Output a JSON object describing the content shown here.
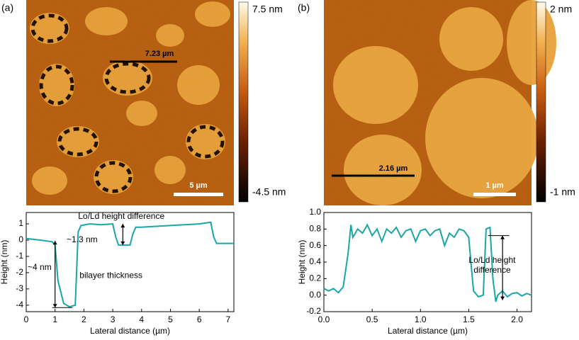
{
  "images": [
    {
      "label": "(a)",
      "scale_bar": "5 µm",
      "line_label": "7.23 µm",
      "colorbar_max": "7.5 nm",
      "colorbar_min": "-4.5 nm"
    },
    {
      "label": "(b)",
      "scale_bar": "1 µm",
      "line_label": "2.16 µm",
      "colorbar_max": "2 nm",
      "colorbar_min": "-1 nm"
    }
  ],
  "chart_data": [
    {
      "type": "line",
      "xlabel": "Lateral distance (µm)",
      "ylabel": "Height (nm)",
      "annotations": [
        "Lo/Ld height difference",
        "~1.3 nm",
        "~4 nm",
        "bilayer thickness"
      ],
      "xlim": [
        0,
        7.2
      ],
      "xticks": [
        0,
        1,
        2,
        3,
        4,
        5,
        6,
        7
      ],
      "ylim": [
        -4.4,
        1.7
      ],
      "yticks": [
        -4,
        -3,
        -2,
        -1,
        0,
        1
      ],
      "series": [
        {
          "color": "#1ba5a5",
          "x": [
            0,
            0.5,
            0.9,
            1.0,
            1.1,
            1.3,
            1.5,
            1.7,
            1.8,
            1.9,
            2.2,
            2.6,
            3.0,
            3.1,
            3.2,
            3.4,
            3.6,
            3.7,
            3.8,
            4.0,
            4.5,
            5.0,
            5.5,
            6.0,
            6.4,
            6.5,
            6.6,
            7.0,
            7.2
          ],
          "values": [
            0.1,
            0.0,
            -0.1,
            -0.3,
            -2.5,
            -3.9,
            -4.1,
            -4.0,
            0.5,
            0.9,
            1.0,
            0.95,
            1.0,
            0.2,
            -0.3,
            -0.3,
            -0.3,
            0.4,
            0.8,
            0.8,
            0.85,
            0.9,
            0.95,
            1.0,
            1.1,
            0.2,
            -0.2,
            -0.2,
            -0.2
          ]
        }
      ]
    },
    {
      "type": "line",
      "xlabel": "Lateral distance (µm)",
      "ylabel": "Height (nm)",
      "annotations": [
        "Lo/Ld height",
        "difference"
      ],
      "xlim": [
        0,
        2.15
      ],
      "xticks": [
        {
          "value": 0,
          "label": "0.0"
        },
        0.5,
        {
          "value": 1,
          "label": "1.0"
        },
        1.5,
        {
          "value": 2,
          "label": "2.0"
        }
      ],
      "ylim": [
        -0.2,
        1.0
      ],
      "yticks": [
        -0.2,
        {
          "value": 0,
          "label": "0.0"
        },
        0.2,
        0.4,
        0.6,
        0.8,
        {
          "value": 1,
          "label": "1.0"
        }
      ],
      "series": [
        {
          "color": "#1ba5a5",
          "x": [
            0,
            0.05,
            0.1,
            0.15,
            0.2,
            0.25,
            0.28,
            0.3,
            0.35,
            0.4,
            0.45,
            0.5,
            0.55,
            0.6,
            0.65,
            0.7,
            0.75,
            0.8,
            0.85,
            0.9,
            0.95,
            1.0,
            1.05,
            1.1,
            1.15,
            1.2,
            1.25,
            1.3,
            1.35,
            1.4,
            1.45,
            1.5,
            1.53,
            1.55,
            1.6,
            1.65,
            1.68,
            1.72,
            1.75,
            1.78,
            1.8,
            1.85,
            1.9,
            1.95,
            2.0,
            2.05,
            2.1,
            2.15
          ],
          "values": [
            0.08,
            0.05,
            0.08,
            0.03,
            0.1,
            0.5,
            0.85,
            0.7,
            0.8,
            0.75,
            0.85,
            0.72,
            0.8,
            0.65,
            0.8,
            0.75,
            0.82,
            0.7,
            0.78,
            0.8,
            0.65,
            0.78,
            0.8,
            0.72,
            0.78,
            0.8,
            0.6,
            0.75,
            0.7,
            0.8,
            0.78,
            0.7,
            0.3,
            0.05,
            -0.02,
            0.0,
            0.8,
            0.82,
            0.2,
            -0.08,
            0.0,
            0.05,
            -0.02,
            0.02,
            0.03,
            -0.01,
            0.02,
            0.0
          ]
        }
      ]
    }
  ]
}
